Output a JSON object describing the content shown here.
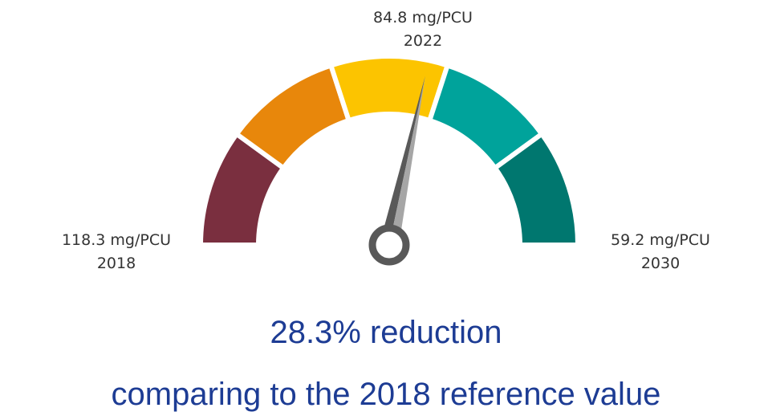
{
  "chart_data": {
    "type": "gauge",
    "range": [
      118.3,
      59.2
    ],
    "range_labels": [
      "118.3 mg/PCU",
      "59.2 mg/PCU"
    ],
    "range_years": [
      "2018",
      "2030"
    ],
    "value": 84.8,
    "value_label": "84.8 mg/PCU",
    "value_year": "2022",
    "band_colors": [
      "#7a2f3f",
      "#e8870b",
      "#fcc400",
      "#00a39b",
      "#00776f"
    ],
    "needle_color": "#595959",
    "annotations": [
      "28.3% reduction",
      "comparing to the 2018 reference value"
    ],
    "annotation_color": "#1d3c94"
  }
}
